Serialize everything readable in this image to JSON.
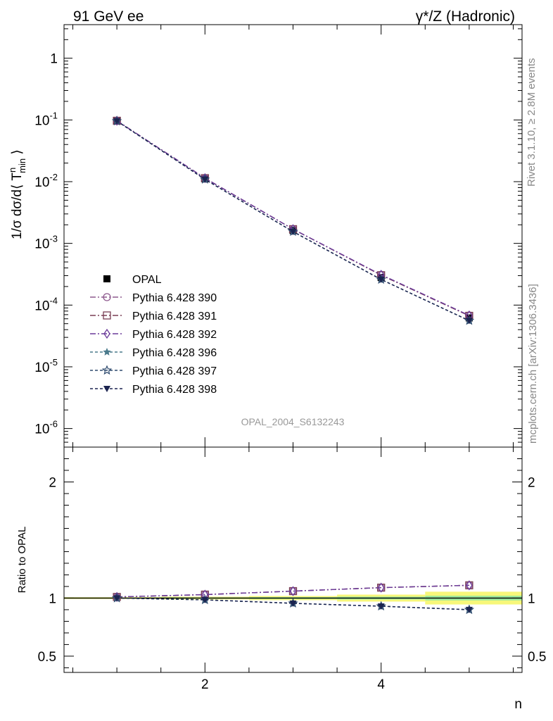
{
  "header": {
    "left_title": "91 GeV ee",
    "right_title": "γ*/Z (Hadronic)"
  },
  "side_text": {
    "rivet": "Rivet 3.1.10, ≥ 2.8M events",
    "mcplots": "mcplots.cern.ch [arXiv:1306.3436]"
  },
  "analysis_label": "OPAL_2004_S6132243",
  "chart_data": [
    {
      "type": "line",
      "panel": "main",
      "yscale": "log",
      "ylabel": "1/σ dσ/d⟨ T^n_min ⟩",
      "ylim": [
        5e-07,
        3.5
      ],
      "xlim": [
        0.4,
        5.6
      ],
      "y_ticks": [
        {
          "value": 1,
          "label": "1"
        },
        {
          "value": 0.1,
          "label": "10^-1"
        },
        {
          "value": 0.01,
          "label": "10^-2"
        },
        {
          "value": 0.001,
          "label": "10^-3"
        },
        {
          "value": 0.0001,
          "label": "10^-4"
        },
        {
          "value": 1e-05,
          "label": "10^-5"
        },
        {
          "value": 1e-06,
          "label": "10^-6"
        }
      ],
      "x": [
        1,
        2,
        3,
        4,
        5
      ],
      "legend_position": "middle-left",
      "series": [
        {
          "name": "OPAL",
          "values": [
            0.096,
            0.0111,
            0.00162,
            0.00028,
            6.2e-05
          ],
          "color": "#000000",
          "marker": "filled-square",
          "dash": "none"
        },
        {
          "name": "Pythia 6.428 390",
          "values": [
            0.097,
            0.0114,
            0.0017,
            0.00031,
            6.8e-05
          ],
          "color": "#8e5a8e",
          "marker": "open-circle",
          "dash": "8,3,2,3"
        },
        {
          "name": "Pythia 6.428 391",
          "values": [
            0.097,
            0.0114,
            0.0017,
            0.000305,
            6.7e-05
          ],
          "color": "#7a3f55",
          "marker": "open-square",
          "dash": "8,3,2,3"
        },
        {
          "name": "Pythia 6.428 392",
          "values": [
            0.097,
            0.0114,
            0.0017,
            0.00031,
            6.8e-05
          ],
          "color": "#6a3a9a",
          "marker": "open-diamond",
          "dash": "8,3,2,3"
        },
        {
          "name": "Pythia 6.428 396",
          "values": [
            0.096,
            0.0109,
            0.00155,
            0.00026,
            5.6e-05
          ],
          "color": "#4a7a8c",
          "marker": "filled-star",
          "dash": "4,3"
        },
        {
          "name": "Pythia 6.428 397",
          "values": [
            0.096,
            0.0109,
            0.00155,
            0.00026,
            5.6e-05
          ],
          "color": "#2e4a6e",
          "marker": "open-star",
          "dash": "4,3"
        },
        {
          "name": "Pythia 6.428 398",
          "values": [
            0.096,
            0.0109,
            0.00155,
            0.00026,
            5.6e-05
          ],
          "color": "#1c2450",
          "marker": "filled-triangle-down",
          "dash": "4,3"
        }
      ]
    },
    {
      "type": "line",
      "panel": "ratio",
      "ylabel": "Ratio to OPAL",
      "xlabel": "n",
      "ylim": [
        0.36,
        2.3
      ],
      "xlim": [
        0.4,
        5.6
      ],
      "x_ticks": [
        {
          "value": 2,
          "label": "2"
        },
        {
          "value": 4,
          "label": "4"
        }
      ],
      "y_ticks": [
        {
          "value": 0.5,
          "label": "0.5"
        },
        {
          "value": 1,
          "label": "1"
        },
        {
          "value": 2,
          "label": "2"
        }
      ],
      "x": [
        1,
        2,
        3,
        4,
        5
      ],
      "band": [
        {
          "x0": 0.4,
          "x1": 1.5,
          "stat": 0.004,
          "total": 0.008
        },
        {
          "x0": 1.5,
          "x1": 2.5,
          "stat": 0.006,
          "total": 0.012
        },
        {
          "x0": 2.5,
          "x1": 3.5,
          "stat": 0.008,
          "total": 0.018
        },
        {
          "x0": 3.5,
          "x1": 4.5,
          "stat": 0.012,
          "total": 0.03
        },
        {
          "x0": 4.5,
          "x1": 5.6,
          "stat": 0.02,
          "total": 0.055
        }
      ],
      "series": [
        {
          "name": "Pythia 6.428 390",
          "values": [
            1.01,
            1.03,
            1.06,
            1.09,
            1.11
          ],
          "color": "#8e5a8e",
          "marker": "open-circle",
          "dash": "8,3,2,3"
        },
        {
          "name": "Pythia 6.428 391",
          "values": [
            1.01,
            1.03,
            1.06,
            1.09,
            1.11
          ],
          "color": "#7a3f55",
          "marker": "open-square",
          "dash": "8,3,2,3"
        },
        {
          "name": "Pythia 6.428 392",
          "values": [
            1.01,
            1.03,
            1.06,
            1.09,
            1.11
          ],
          "color": "#6a3a9a",
          "marker": "open-diamond",
          "dash": "8,3,2,3"
        },
        {
          "name": "Pythia 6.428 396",
          "values": [
            1.0,
            0.985,
            0.955,
            0.93,
            0.9
          ],
          "color": "#4a7a8c",
          "marker": "filled-star",
          "dash": "4,3"
        },
        {
          "name": "Pythia 6.428 397",
          "values": [
            1.0,
            0.985,
            0.955,
            0.93,
            0.9
          ],
          "color": "#2e4a6e",
          "marker": "open-star",
          "dash": "4,3"
        },
        {
          "name": "Pythia 6.428 398",
          "values": [
            1.0,
            0.985,
            0.955,
            0.93,
            0.9
          ],
          "color": "#1c2450",
          "marker": "filled-triangle-down",
          "dash": "4,3"
        }
      ]
    }
  ]
}
